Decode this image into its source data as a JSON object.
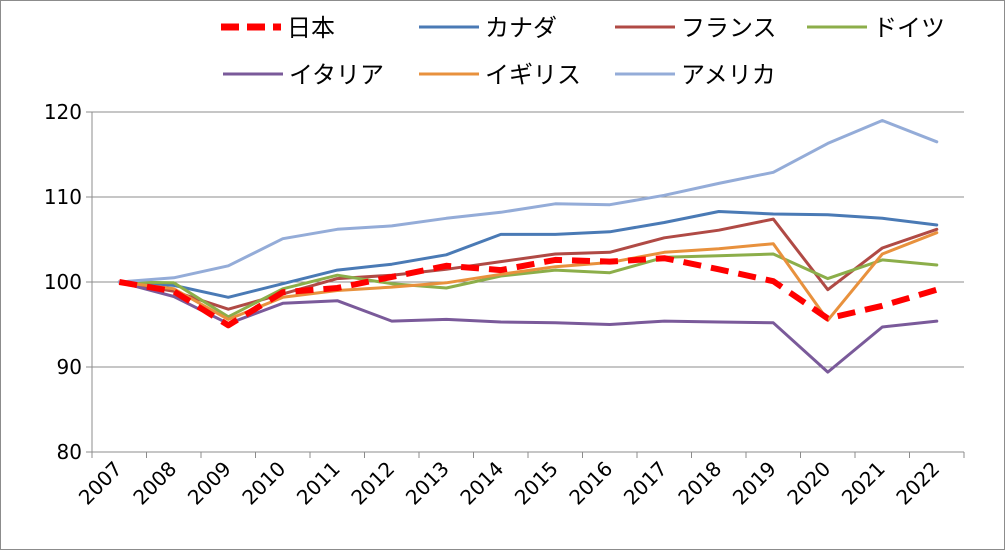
{
  "chart_data": {
    "type": "line",
    "title": "",
    "xlabel": "",
    "ylabel": "",
    "x": [
      "2007",
      "2008",
      "2009",
      "2010",
      "2011",
      "2012",
      "2013",
      "2014",
      "2015",
      "2016",
      "2017",
      "2018",
      "2019",
      "2020",
      "2021",
      "2022"
    ],
    "ylim": [
      80,
      120
    ],
    "yticks": [
      "80",
      "90",
      "100",
      "110",
      "120"
    ],
    "grid": "horizontal",
    "legend_position": "top",
    "series": [
      {
        "name": "日本",
        "color": "#ff0000",
        "dashed": true,
        "values": [
          100,
          98.9,
          94.9,
          98.8,
          99.3,
          100.6,
          101.9,
          101.4,
          102.6,
          102.4,
          102.8,
          101.5,
          100.1,
          95.7,
          97.2,
          99.1
        ]
      },
      {
        "name": "カナダ",
        "color": "#4a7ab5",
        "dashed": false,
        "values": [
          100,
          99.6,
          98.2,
          99.8,
          101.4,
          102.1,
          103.2,
          105.6,
          105.6,
          105.9,
          107.0,
          108.3,
          108.0,
          107.9,
          107.5,
          106.7
        ]
      },
      {
        "name": "フランス",
        "color": "#b04a45",
        "dashed": false,
        "values": [
          100,
          98.9,
          96.8,
          98.6,
          100.4,
          100.8,
          101.5,
          102.4,
          103.3,
          103.5,
          105.2,
          106.1,
          107.4,
          99.1,
          104.0,
          106.2
        ]
      },
      {
        "name": "ドイツ",
        "color": "#8cae4a",
        "dashed": false,
        "values": [
          100,
          99.9,
          95.9,
          99.2,
          100.8,
          99.8,
          99.3,
          100.7,
          101.4,
          101.1,
          102.9,
          103.1,
          103.3,
          100.4,
          102.6,
          102.0
        ]
      },
      {
        "name": "イタリア",
        "color": "#7a5a9a",
        "dashed": false,
        "values": [
          100,
          98.3,
          95.1,
          97.5,
          97.8,
          95.4,
          95.6,
          95.3,
          95.2,
          95.0,
          95.4,
          95.3,
          95.2,
          89.4,
          94.7,
          95.4
        ]
      },
      {
        "name": "イギリス",
        "color": "#e8913d",
        "dashed": false,
        "values": [
          100,
          99.2,
          95.6,
          98.2,
          99.0,
          99.4,
          99.9,
          100.9,
          101.8,
          102.3,
          103.5,
          103.9,
          104.5,
          95.5,
          103.3,
          105.8
        ]
      },
      {
        "name": "アメリカ",
        "color": "#94acd8",
        "dashed": false,
        "values": [
          100,
          100.5,
          101.9,
          105.1,
          106.2,
          106.6,
          107.5,
          108.2,
          109.2,
          109.1,
          110.2,
          111.6,
          112.9,
          116.3,
          119.0,
          116.5
        ]
      }
    ]
  }
}
